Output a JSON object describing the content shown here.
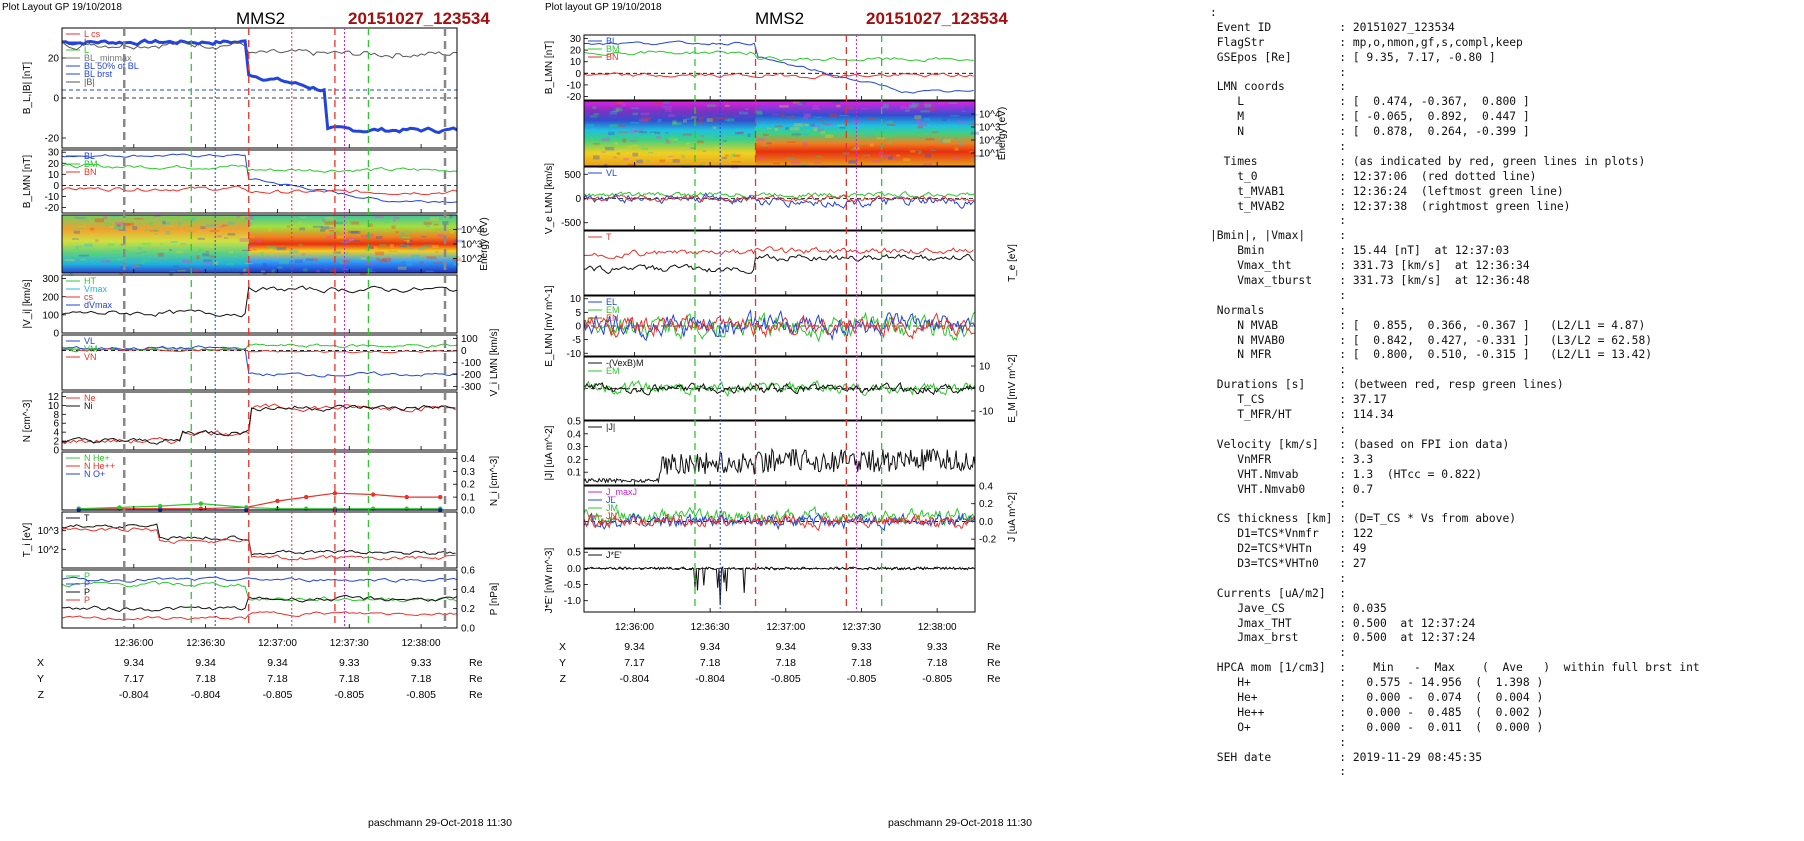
{
  "left_panel": {
    "header": "Plot Layout GP 19/10/2018",
    "spacecraft": "MMS2",
    "event": "20151027_123534",
    "footer": "paschmann 29-Oct-2018 11:30",
    "x_ticks": [
      "12:36:00",
      "12:36:30",
      "12:37:00",
      "12:37:30",
      "12:38:00"
    ],
    "pos_rows": [
      {
        "label": "X",
        "values": [
          "9.34",
          "9.34",
          "9.34",
          "9.33",
          "9.33"
        ],
        "unit": "Re"
      },
      {
        "label": "Y",
        "values": [
          "7.17",
          "7.18",
          "7.18",
          "7.18",
          "7.18"
        ],
        "unit": "Re"
      },
      {
        "label": "Z",
        "values": [
          "-0.804",
          "-0.804",
          "-0.805",
          "-0.805",
          "-0.805"
        ],
        "unit": "Re"
      }
    ]
  },
  "right_panel": {
    "header": "Plot layout GP 19/10/2018",
    "spacecraft": "MMS2",
    "event": "20151027_123534",
    "footer": "paschmann 29-Oct-2018 11:30",
    "x_ticks": [
      "12:36:00",
      "12:36:30",
      "12:37:00",
      "12:37:30",
      "12:38:00"
    ],
    "pos_rows": [
      {
        "label": "X",
        "values": [
          "9.34",
          "9.34",
          "9.34",
          "9.33",
          "9.33"
        ],
        "unit": "Re"
      },
      {
        "label": "Y",
        "values": [
          "7.17",
          "7.18",
          "7.18",
          "7.18",
          "7.18"
        ],
        "unit": "Re"
      },
      {
        "label": "Z",
        "values": [
          "-0.804",
          "-0.804",
          "-0.805",
          "-0.805",
          "-0.805"
        ],
        "unit": "Re"
      }
    ]
  },
  "colors": {
    "red": "#e8322c",
    "green": "#2ec82e",
    "blue": "#2244dd",
    "black": "#111111",
    "magenta": "#d020d0",
    "cyan": "#22bbdd",
    "gray": "#888888",
    "event_red": "#a01010"
  },
  "chart_data": [
    {
      "type": "line",
      "panel": "left",
      "time_range": [
        "12:35:30",
        "12:38:15"
      ],
      "markers": {
        "red_dashed": [
          "12:36:48",
          "12:37:24"
        ],
        "red_dotted": [
          "12:37:06"
        ],
        "green_dashed": [
          "12:36:24",
          "12:37:38"
        ],
        "blue_dotted": [
          "12:36:34"
        ],
        "magenta_dotted": [
          "12:37:28"
        ],
        "gray_dashed": [
          "12:35:56",
          "12:38:10"
        ]
      },
      "rows": [
        {
          "ylabel": "B_L,|B| [nT]",
          "ylim": [
            -25,
            35
          ],
          "ticks": [
            "-20",
            "0",
            "20"
          ],
          "legend": [
            "L cs",
            "L",
            "L",
            "BL_minmax",
            "BL 50% of BL",
            "BL brst",
            "|B|"
          ]
        },
        {
          "ylabel": "B_LMN [nT]",
          "ylim": [
            -25,
            32
          ],
          "ticks": [
            "-20",
            "-10",
            "0",
            "10",
            "20",
            "30"
          ],
          "legend": [
            "BL",
            "BM",
            "BN"
          ]
        },
        {
          "ylabel": "Energy (eV)",
          "type": "heatmap",
          "ticks": [
            "10^2",
            "10^3",
            "10^4"
          ]
        },
        {
          "ylabel": "|V_i| [km/s]",
          "ylim": [
            0,
            320
          ],
          "ticks": [
            "0",
            "100",
            "200",
            "300"
          ],
          "legend": [
            "HT",
            "Vmax",
            "cs",
            "dVmax"
          ]
        },
        {
          "ylabel": "V_i LMN [km/s]",
          "ylim": [
            -330,
            130
          ],
          "ticks": [
            "-300",
            "-200",
            "-100",
            "0",
            "100"
          ],
          "legend": [
            "VL",
            "VM",
            "VN"
          ]
        },
        {
          "ylabel": "N [cm^-3]",
          "ylim": [
            0,
            13
          ],
          "ticks": [
            "0",
            "2",
            "4",
            "6",
            "8",
            "10",
            "12"
          ],
          "legend": [
            "Ne",
            "Ni"
          ]
        },
        {
          "ylabel": "N_i [cm^-3]",
          "ylim": [
            0,
            0.45
          ],
          "ticks": [
            "0.0",
            "0.1",
            "0.2",
            "0.3",
            "0.4"
          ],
          "legend": [
            "N He+",
            "N He++",
            "N O+"
          ],
          "series": [
            {
              "name": "N He++",
              "x": [
                "12:35:37",
                "12:35:54",
                "12:36:11",
                "12:36:28",
                "12:36:47",
                "12:37:00",
                "12:37:12",
                "12:37:24",
                "12:37:40",
                "12:37:54",
                "12:38:08"
              ],
              "values": [
                0.01,
                0.01,
                0.01,
                0.01,
                0.02,
                0.07,
                0.1,
                0.13,
                0.12,
                0.1,
                0.1
              ]
            },
            {
              "name": "N He+",
              "x": [
                "12:35:37",
                "12:35:54",
                "12:36:11",
                "12:36:28",
                "12:36:47",
                "12:37:00",
                "12:37:12",
                "12:37:24",
                "12:37:40",
                "12:37:54",
                "12:38:08"
              ],
              "values": [
                0.01,
                0.02,
                0.03,
                0.05,
                0.02,
                0.01,
                0.01,
                0.01,
                0.01,
                0.01,
                0.01
              ]
            },
            {
              "name": "N O+",
              "x": [
                "12:35:37",
                "12:36:11",
                "12:36:47",
                "12:37:24",
                "12:38:08"
              ],
              "values": [
                0.0,
                0.0,
                0.0,
                0.0,
                0.0
              ]
            }
          ]
        },
        {
          "ylabel": "T_i [eV]",
          "ticks": [
            "10^2",
            "10^3"
          ],
          "legend": [
            "T"
          ]
        },
        {
          "ylabel": "P [nPa]",
          "ylim": [
            0,
            0.6
          ],
          "ticks": [
            "0.0",
            "0.2",
            "0.4",
            "0.6"
          ],
          "legend": [
            "P",
            "P",
            "P",
            "P"
          ]
        }
      ]
    },
    {
      "type": "line",
      "panel": "right",
      "time_range": [
        "12:35:40",
        "12:38:15"
      ],
      "markers": {
        "red_dashed": [
          "12:36:48",
          "12:37:24"
        ],
        "green_dashed": [
          "12:36:24",
          "12:37:38"
        ],
        "blue_dotted": [
          "12:36:34"
        ],
        "magenta_dotted": [
          "12:37:28"
        ]
      },
      "rows": [
        {
          "ylabel": "B_LMN [nT]",
          "ylim": [
            -23,
            33
          ],
          "ticks": [
            "-20",
            "-10",
            "0",
            "10",
            "20",
            "30"
          ],
          "legend": [
            "BL",
            "BM",
            "BN"
          ]
        },
        {
          "ylabel": "Energy (eV)",
          "type": "heatmap",
          "ticks": [
            "10^1",
            "10^2",
            "10^3",
            "10^4"
          ]
        },
        {
          "ylabel": "V_e LMN [km/s]",
          "ylim": [
            -650,
            650
          ],
          "ticks": [
            "-500",
            "0",
            "500"
          ],
          "legend": [
            "VL"
          ]
        },
        {
          "ylabel": "T_e [eV]",
          "legend": [
            "T"
          ]
        },
        {
          "ylabel": "E_LMN [mV m^-1]",
          "ylim": [
            -11,
            11
          ],
          "ticks": [
            "-10",
            "-5",
            "0",
            "5",
            "10"
          ],
          "legend": [
            "EL",
            "EM",
            "EN"
          ]
        },
        {
          "ylabel": "E_M [mV m^-2]",
          "ylim": [
            -14,
            14
          ],
          "ticks": [
            "-10",
            "0",
            "10"
          ],
          "legend": [
            "-(VexB)M",
            "EM"
          ]
        },
        {
          "ylabel": "|J| [uA m^-2]",
          "ylim": [
            0,
            0.5
          ],
          "ticks": [
            "0.1",
            "0.2",
            "0.3",
            "0.4",
            "0.5"
          ],
          "legend": [
            "|J|"
          ]
        },
        {
          "ylabel": "J [uA m^-2]",
          "ylim": [
            -0.3,
            0.4
          ],
          "ticks": [
            "-0.2",
            "0.0",
            "0.2",
            "0.4"
          ],
          "legend": [
            "J_maxJ",
            "JL",
            "JM",
            "JN"
          ]
        },
        {
          "ylabel": "J*E' [nW m^-3]",
          "ylim": [
            -1.35,
            0.6
          ],
          "ticks": [
            "-1.0",
            "-0.5",
            "0.0",
            "0.5"
          ],
          "legend": [
            "J*E'"
          ]
        }
      ]
    }
  ],
  "info": [
    ":",
    " Event ID          : 20151027_123534",
    " FlagStr           : mp,o,nmon,gf,s,compl,keep",
    " GSEpos [Re]       : [ 9.35, 7.17, -0.80 ]",
    "                   :",
    " LMN coords        :",
    "    L              : [  0.474, -0.367,  0.800 ]",
    "    M              : [ -0.065,  0.892,  0.447 ]",
    "    N              : [  0.878,  0.264, -0.399 ]",
    "                   :",
    "  Times            : (as indicated by red, green lines in plots)",
    "    t_0            : 12:37:06  (red dotted line)",
    "    t_MVAB1        : 12:36:24  (leftmost green line)",
    "    t_MVAB2        : 12:37:38  (rightmost green line)",
    "                   :",
    "|Bmin|, |Vmax|     :",
    "    Bmin           : 15.44 [nT]  at 12:37:03",
    "    Vmax_tht       : 331.73 [km/s]  at 12:36:34",
    "    Vmax_tburst    : 331.73 [km/s]  at 12:36:48",
    "                   :",
    " Normals           :",
    "    N MVAB         : [  0.855,  0.366, -0.367 ]   (L2/L1 = 4.87)",
    "    N MVAB0        : [  0.842,  0.427, -0.331 ]   (L3/L2 = 62.58)",
    "    N MFR          : [  0.800,  0.510, -0.315 ]   (L2/L1 = 13.42)",
    "                   :",
    " Durations [s]     : (between red, resp green lines)",
    "    T_CS           : 37.17",
    "    T_MFR/HT       : 114.34",
    "                   :",
    " Velocity [km/s]   : (based on FPI ion data)",
    "    VnMFR          : 3.3",
    "    VHT.Nmvab      : 1.3  (HTcc = 0.822)",
    "    VHT.Nmvab0     : 0.7",
    "                   :",
    " CS thickness [km] : (D=T_CS * Vs from above)",
    "    D1=TCS*Vnmfr   : 122",
    "    D2=TCS*VHTn    : 49",
    "    D3=TCS*VHTn0   : 27",
    "                   :",
    " Currents [uA/m2]  :",
    "    Jave_CS        : 0.035",
    "    Jmax_THT       : 0.500  at 12:37:24",
    "    Jmax_brst      : 0.500  at 12:37:24",
    "                   :",
    " HPCA mom [1/cm3]  :    Min   -  Max    (  Ave   )  within full brst int",
    "    H+             :   0.575 - 14.956  (  1.398 )",
    "    He+            :   0.000 -  0.074  (  0.004 )",
    "    He++           :   0.000 -  0.485  (  0.002 )",
    "    O+             :   0.000 -  0.011  (  0.000 )",
    "                   :",
    " SEH date          : 2019-11-29 08:45:35",
    "                   :"
  ]
}
